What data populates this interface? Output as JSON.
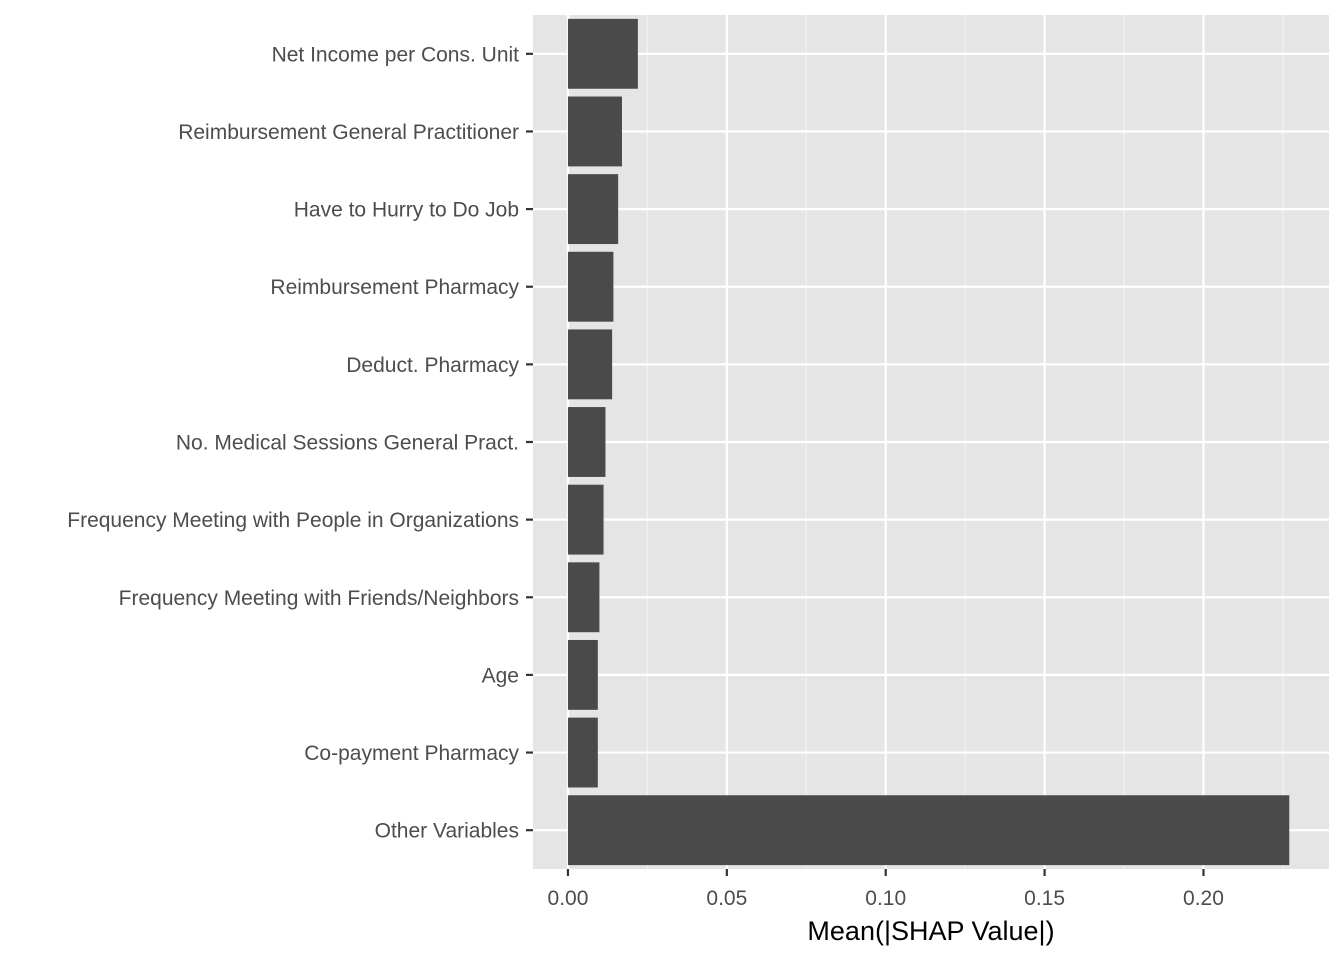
{
  "chart_data": {
    "type": "bar",
    "orientation": "horizontal",
    "categories": [
      "Net Income per Cons. Unit",
      "Reimbursement General Practitioner",
      "Have to Hurry to Do Job",
      "Reimbursement Pharmacy",
      "Deduct. Pharmacy",
      "No. Medical Sessions General Pract.",
      "Frequency Meeting with People in Organizations",
      "Frequency Meeting with Friends/Neighbors",
      "Age",
      "Co-payment Pharmacy",
      "Other Variables"
    ],
    "values": [
      0.022,
      0.017,
      0.0158,
      0.0143,
      0.0139,
      0.0118,
      0.0112,
      0.0099,
      0.0094,
      0.0094,
      0.227
    ],
    "title": "",
    "xlabel": "Mean(|SHAP Value|)",
    "ylabel": "",
    "xlim": [
      -0.011,
      0.2395
    ],
    "xticks": [
      0.0,
      0.05,
      0.1,
      0.15,
      0.2
    ],
    "xtick_labels": [
      "0.00",
      "0.05",
      "0.10",
      "0.15",
      "0.20"
    ],
    "grid": true,
    "colors": {
      "panel_background": "#e5e5e5",
      "grid_major": "#ffffff",
      "grid_minor": "#f2f2f2",
      "bar_fill": "#4a4a4a",
      "tick_mark": "#333333",
      "tick_label": "#4d4d4d"
    }
  }
}
